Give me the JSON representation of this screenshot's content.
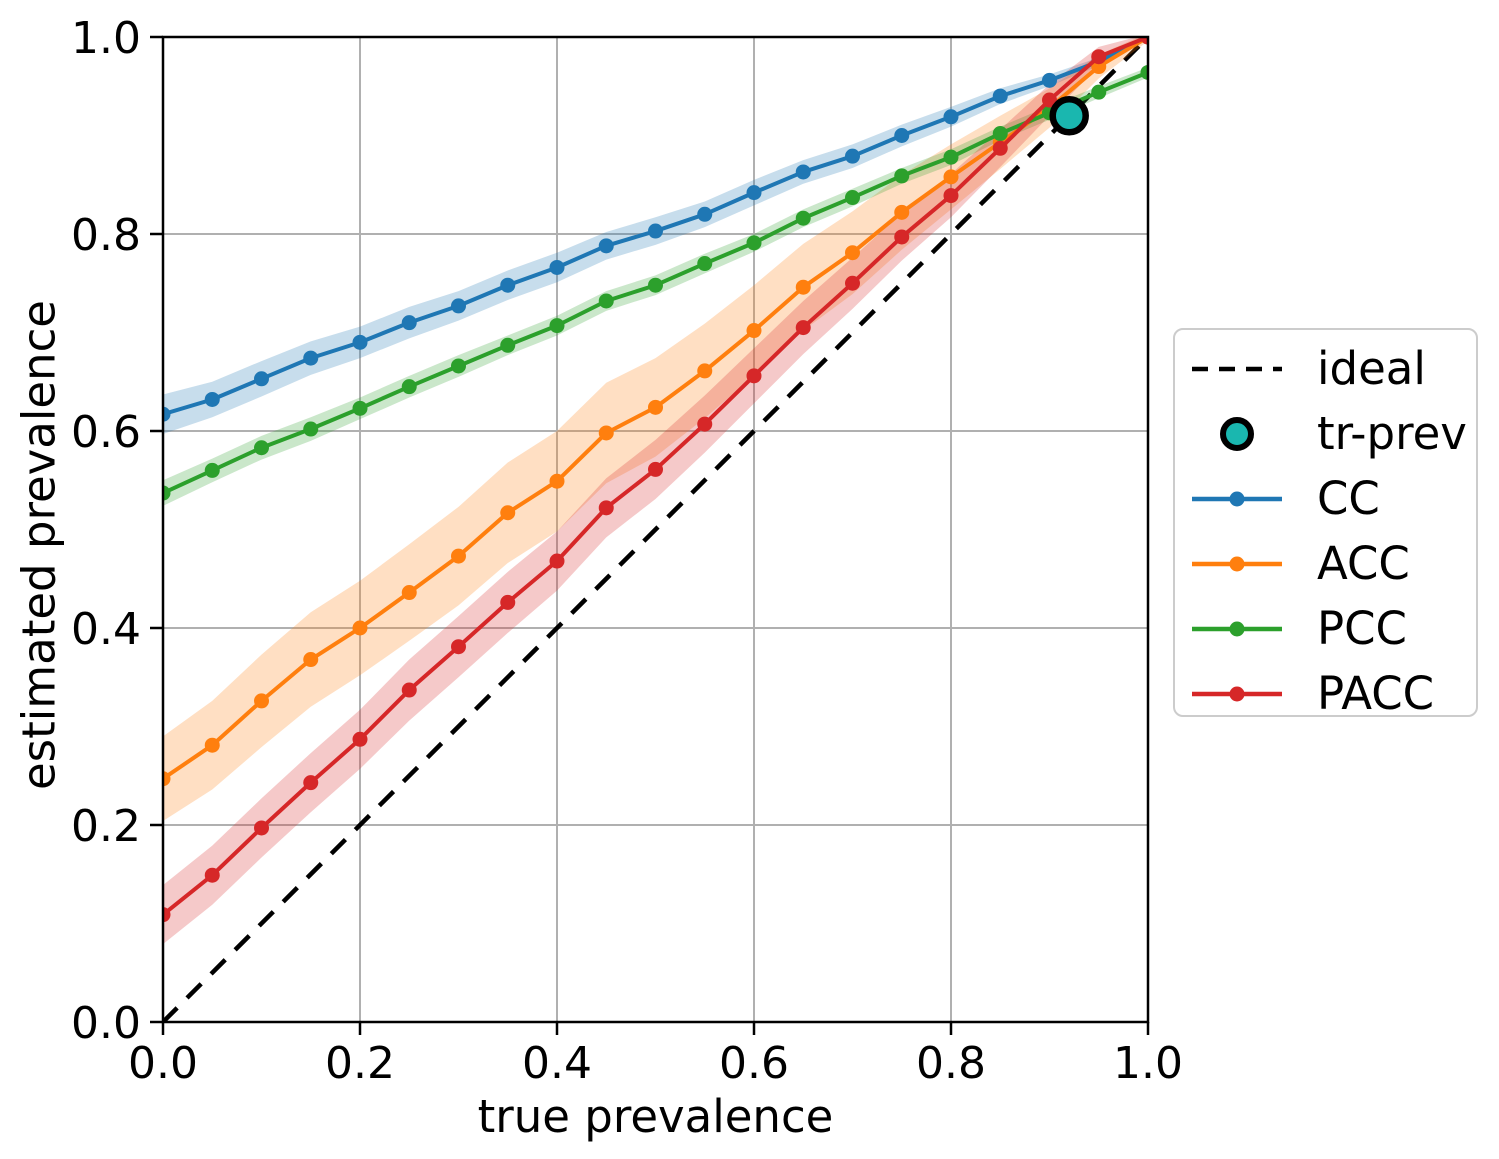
{
  "chart_data": {
    "type": "line",
    "title": "",
    "xlabel": "true prevalence",
    "ylabel": "estimated prevalence",
    "xlim": [
      0.0,
      1.0
    ],
    "ylim": [
      0.0,
      1.0
    ],
    "grid": true,
    "legend_position": "outside right",
    "xticks": [
      0.0,
      0.2,
      0.4,
      0.6,
      0.8,
      1.0
    ],
    "xtick_labels": [
      "0.0",
      "0.2",
      "0.4",
      "0.6",
      "0.8",
      "1.0"
    ],
    "yticks": [
      0.0,
      0.2,
      0.4,
      0.6,
      0.8,
      1.0
    ],
    "ytick_labels": [
      "0.0",
      "0.2",
      "0.4",
      "0.6",
      "0.8",
      "1.0"
    ],
    "x": [
      0.0,
      0.05,
      0.1,
      0.15,
      0.2,
      0.25,
      0.3,
      0.35,
      0.4,
      0.45,
      0.5,
      0.55,
      0.6,
      0.65,
      0.7,
      0.75,
      0.8,
      0.85,
      0.9,
      0.95,
      1.0
    ],
    "series": [
      {
        "name": "CC",
        "color": "#1f77b4",
        "values": [
          0.617,
          0.632,
          0.653,
          0.674,
          0.69,
          0.71,
          0.727,
          0.748,
          0.766,
          0.788,
          0.803,
          0.82,
          0.842,
          0.863,
          0.879,
          0.9,
          0.919,
          0.94,
          0.956,
          0.975,
          1.0
        ],
        "band_halfwidth": [
          0.02,
          0.018,
          0.018,
          0.017,
          0.016,
          0.016,
          0.015,
          0.015,
          0.015,
          0.014,
          0.014,
          0.013,
          0.013,
          0.012,
          0.012,
          0.011,
          0.01,
          0.008,
          0.006,
          0.004,
          0.002
        ]
      },
      {
        "name": "ACC",
        "color": "#ff7f0e",
        "values": [
          0.247,
          0.281,
          0.326,
          0.368,
          0.4,
          0.436,
          0.473,
          0.517,
          0.549,
          0.598,
          0.624,
          0.661,
          0.702,
          0.746,
          0.781,
          0.822,
          0.858,
          0.893,
          0.928,
          0.97,
          1.0
        ],
        "band_halfwidth": [
          0.043,
          0.045,
          0.047,
          0.048,
          0.048,
          0.049,
          0.05,
          0.051,
          0.051,
          0.051,
          0.05,
          0.048,
          0.046,
          0.044,
          0.042,
          0.038,
          0.033,
          0.027,
          0.02,
          0.012,
          0.004
        ]
      },
      {
        "name": "PCC",
        "color": "#2ca02c",
        "values": [
          0.537,
          0.56,
          0.583,
          0.602,
          0.623,
          0.645,
          0.666,
          0.687,
          0.707,
          0.732,
          0.748,
          0.77,
          0.791,
          0.816,
          0.837,
          0.859,
          0.878,
          0.902,
          0.923,
          0.944,
          0.964
        ],
        "band_halfwidth": [
          0.013,
          0.012,
          0.012,
          0.012,
          0.011,
          0.011,
          0.011,
          0.01,
          0.01,
          0.01,
          0.01,
          0.01,
          0.009,
          0.009,
          0.009,
          0.008,
          0.008,
          0.007,
          0.007,
          0.006,
          0.005
        ]
      },
      {
        "name": "PACC",
        "color": "#d62728",
        "values": [
          0.109,
          0.149,
          0.197,
          0.243,
          0.287,
          0.337,
          0.381,
          0.426,
          0.468,
          0.522,
          0.561,
          0.607,
          0.656,
          0.705,
          0.75,
          0.797,
          0.839,
          0.887,
          0.936,
          0.98,
          1.0
        ],
        "band_halfwidth": [
          0.03,
          0.03,
          0.03,
          0.03,
          0.03,
          0.031,
          0.031,
          0.031,
          0.03,
          0.03,
          0.03,
          0.029,
          0.028,
          0.027,
          0.026,
          0.024,
          0.022,
          0.019,
          0.016,
          0.01,
          0.003
        ]
      }
    ],
    "ideal": {
      "label": "ideal",
      "style": "dashed",
      "color": "#000000",
      "from": [
        0.0,
        0.0
      ],
      "to": [
        1.0,
        1.0
      ]
    },
    "tr_prev": {
      "label": "tr-prev",
      "x": 0.92,
      "y": 0.92,
      "fill": "#1ab7af",
      "edge": "#000000"
    },
    "band_opacity": 0.25,
    "grid_color": "#b0b0b0"
  }
}
